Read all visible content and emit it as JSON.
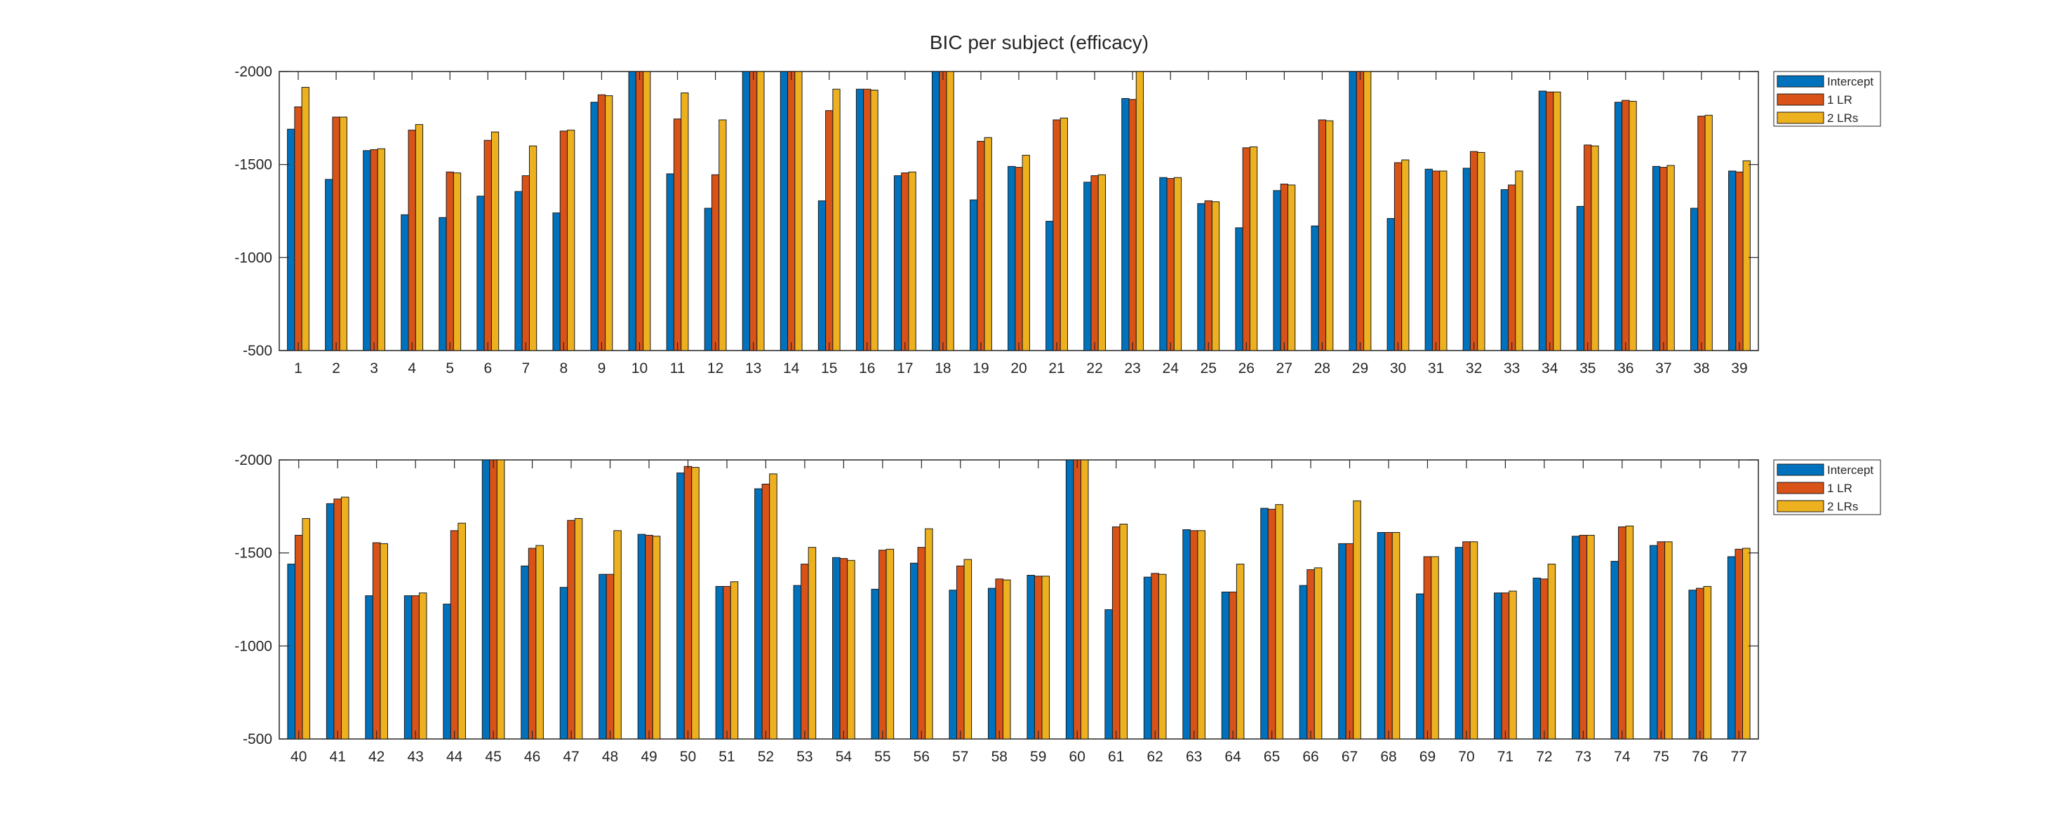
{
  "title": "BIC per subject (efficacy)",
  "colors": {
    "Intercept": "#0072BD",
    "1 LR": "#D95319",
    "2 LRs": "#EDB120",
    "axis": "#262626"
  },
  "chart_data": [
    {
      "type": "bar",
      "title": "BIC per subject (efficacy)",
      "xlabel": "",
      "ylabel": "",
      "ylim": [
        -2000,
        -500
      ],
      "y_direction": "reversed",
      "yticks": [
        -2000,
        -1500,
        -1000,
        -500
      ],
      "legend": "outside-top-right",
      "grid": false,
      "categories": [
        "1",
        "2",
        "3",
        "4",
        "5",
        "6",
        "7",
        "8",
        "9",
        "10",
        "11",
        "12",
        "13",
        "14",
        "15",
        "16",
        "17",
        "18",
        "19",
        "20",
        "21",
        "22",
        "23",
        "24",
        "25",
        "26",
        "27",
        "28",
        "29",
        "30",
        "31",
        "32",
        "33",
        "34",
        "35",
        "36",
        "37",
        "38",
        "39"
      ],
      "series": [
        {
          "name": "Intercept",
          "values": [
            -1690,
            -1420,
            -1575,
            -1230,
            -1215,
            -1330,
            -1355,
            -1240,
            -1835,
            -2000,
            -1450,
            -1265,
            -2000,
            -2000,
            -1305,
            -1905,
            -1440,
            -2000,
            -1310,
            -1490,
            -1195,
            -1405,
            -1855,
            -1430,
            -1290,
            -1160,
            -1360,
            -1170,
            -2000,
            -1210,
            -1475,
            -1480,
            -1365,
            -1895,
            -1275,
            -1835,
            -1490,
            -1265,
            -1465
          ]
        },
        {
          "name": "1 LR",
          "values": [
            -1810,
            -1755,
            -1580,
            -1685,
            -1460,
            -1630,
            -1440,
            -1680,
            -1875,
            -2000,
            -1745,
            -1445,
            -2000,
            -2000,
            -1790,
            -1905,
            -1455,
            -2000,
            -1625,
            -1485,
            -1740,
            -1440,
            -1850,
            -1425,
            -1305,
            -1590,
            -1395,
            -1740,
            -2000,
            -1510,
            -1465,
            -1570,
            -1390,
            -1890,
            -1605,
            -1845,
            -1485,
            -1760,
            -1460
          ]
        },
        {
          "name": "2 LRs",
          "values": [
            -1915,
            -1755,
            -1585,
            -1715,
            -1455,
            -1675,
            -1600,
            -1685,
            -1870,
            -2000,
            -1885,
            -1740,
            -2000,
            -2000,
            -1905,
            -1900,
            -1460,
            -2000,
            -1645,
            -1550,
            -1750,
            -1445,
            -2000,
            -1430,
            -1300,
            -1595,
            -1390,
            -1735,
            -2000,
            -1525,
            -1465,
            -1565,
            -1465,
            -1890,
            -1600,
            -1840,
            -1495,
            -1765,
            -1520
          ]
        }
      ]
    },
    {
      "type": "bar",
      "title": "",
      "xlabel": "",
      "ylabel": "",
      "ylim": [
        -2000,
        -500
      ],
      "y_direction": "reversed",
      "yticks": [
        -2000,
        -1500,
        -1000,
        -500
      ],
      "legend": "outside-top-right",
      "grid": false,
      "categories": [
        "40",
        "41",
        "42",
        "43",
        "44",
        "45",
        "46",
        "47",
        "48",
        "49",
        "50",
        "51",
        "52",
        "53",
        "54",
        "55",
        "56",
        "57",
        "58",
        "59",
        "60",
        "61",
        "62",
        "63",
        "64",
        "65",
        "66",
        "67",
        "68",
        "69",
        "70",
        "71",
        "72",
        "73",
        "74",
        "75",
        "76",
        "77"
      ],
      "series": [
        {
          "name": "Intercept",
          "values": [
            -1440,
            -1765,
            -1270,
            -1270,
            -1225,
            -2000,
            -1430,
            -1315,
            -1385,
            -1600,
            -1930,
            -1320,
            -1845,
            -1325,
            -1475,
            -1305,
            -1445,
            -1300,
            -1310,
            -1380,
            -2000,
            -1195,
            -1370,
            -1625,
            -1290,
            -1740,
            -1325,
            -1550,
            -1610,
            -1280,
            -1530,
            -1285,
            -1365,
            -1590,
            -1455,
            -1540,
            -1300,
            -1480
          ]
        },
        {
          "name": "1 LR",
          "values": [
            -1595,
            -1790,
            -1555,
            -1270,
            -1620,
            -2000,
            -1525,
            -1675,
            -1385,
            -1595,
            -1965,
            -1320,
            -1870,
            -1440,
            -1470,
            -1515,
            -1530,
            -1430,
            -1360,
            -1375,
            -2000,
            -1640,
            -1390,
            -1620,
            -1290,
            -1735,
            -1410,
            -1550,
            -1610,
            -1480,
            -1560,
            -1285,
            -1360,
            -1595,
            -1640,
            -1560,
            -1310,
            -1520
          ]
        },
        {
          "name": "2 LRs",
          "values": [
            -1685,
            -1800,
            -1550,
            -1285,
            -1660,
            -2000,
            -1540,
            -1685,
            -1620,
            -1590,
            -1960,
            -1345,
            -1925,
            -1530,
            -1460,
            -1520,
            -1630,
            -1465,
            -1355,
            -1375,
            -2000,
            -1655,
            -1385,
            -1620,
            -1440,
            -1760,
            -1420,
            -1780,
            -1610,
            -1480,
            -1560,
            -1295,
            -1440,
            -1595,
            -1645,
            -1560,
            -1320,
            -1525
          ]
        }
      ]
    }
  ]
}
